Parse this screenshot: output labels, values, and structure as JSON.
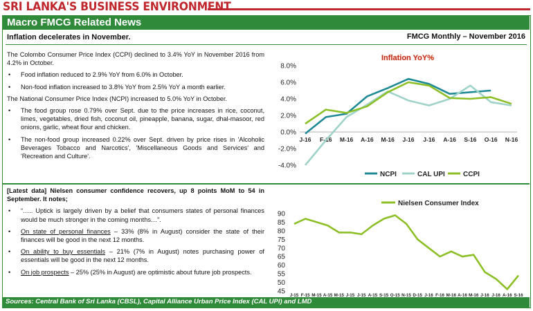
{
  "top_title": "SRI LANKA'S BUSINESS ENVIRONMENT",
  "header": {
    "title": "Macro FMCG Related News"
  },
  "subheader": {
    "left": "Inflation decelerates in November.",
    "right": "FMCG Monthly – November 2016"
  },
  "inflation_text": {
    "p1": "The Colombo Consumer Price Index (CCPI) declined to 3.4% YoY in November 2016 from 4.2% in October.",
    "b1": "Food inflation reduced to 2.9% YoY  from 6.0% in October.",
    "b2": "Non-food inflation increased to 3.8% YoY from 2.5% YoY a month earlier.",
    "p2": "The National Consumer Price Index (NCPI) increased to 5.0% YoY in October.",
    "b3": "The food group rose 0.79% over Sept. due to the price increases in rice, coconut, limes, vegetables, dried fish, coconut oil, pineapple, banana, sugar, dhal-masoor, red onions, garlic, wheat flour and chicken.",
    "b4": "The non-food group increased 0.22% over Sept. driven by price rises in 'Alcoholic Beverages Tobacco and Narcotics', 'Miscellaneous Goods and Services' and 'Recreation and Culture'."
  },
  "confidence_text": {
    "heading": "[Latest data] Nielsen consumer confidence recovers, up 8 points MoM to 54 in September. It notes;",
    "b1": "“….. Uptick is largely driven by a belief that consumers states of personal finances would be much stronger in the coming months…”.",
    "b2_link": "On state of personal finances",
    "b2_rest": " – 33% (8% in August) consider the state of their finances will be good in the next 12 months.",
    "b3_link": "On ability to buy essentials",
    "b3_rest": " – 21% (7% in August) notes purchasing power of essentials will be good in the next 12 months.",
    "b4_link": "On job prospects",
    "b4_rest": " – 25% (25% in August) are optimistic about future job prospects."
  },
  "footer": "Sources: Central Bank of Sri Lanka (CBSL), Capital Alliance Urban Price Index (CAL UPI) and LMD",
  "bullet_char": "•",
  "chart_data": [
    {
      "type": "line",
      "title": "Inflation YoY%",
      "categories": [
        "J-16",
        "F-16",
        "M-16",
        "A-16",
        "M-16",
        "J-16",
        "J-16",
        "A-16",
        "S-16",
        "O-16",
        "N-16"
      ],
      "ylim": [
        -4,
        8
      ],
      "yticks": [
        "-4.0%",
        "-2.0%",
        "0.0%",
        "2.0%",
        "4.0%",
        "6.0%",
        "8.0%"
      ],
      "series": [
        {
          "name": "NCPI",
          "color": "#1e8a96",
          "values": [
            -0.2,
            1.8,
            2.2,
            4.3,
            5.3,
            6.4,
            5.8,
            4.6,
            4.8,
            5.0,
            null
          ]
        },
        {
          "name": "CAL UPI",
          "color": "#9fd3c9",
          "values": [
            -4.0,
            -1.0,
            1.8,
            3.3,
            4.9,
            3.8,
            3.2,
            4.0,
            5.6,
            3.6,
            3.2
          ]
        },
        {
          "name": "CCPI",
          "color": "#8cbf26",
          "values": [
            1.0,
            2.7,
            2.3,
            3.1,
            4.8,
            6.0,
            5.6,
            4.1,
            4.0,
            4.2,
            3.4
          ]
        }
      ]
    },
    {
      "type": "line",
      "title": "",
      "categories": [
        "J-15",
        "F-15",
        "M-15",
        "A-15",
        "M-15",
        "J-15",
        "J-15",
        "A-15",
        "S-15",
        "O-15",
        "N-15",
        "D-15",
        "J-16",
        "F-16",
        "M-16",
        "A-16",
        "M-16",
        "J-16",
        "J-16",
        "A-16",
        "S-16"
      ],
      "ylim": [
        45,
        90
      ],
      "yticks": [
        "45",
        "50",
        "55",
        "60",
        "65",
        "70",
        "75",
        "80",
        "85",
        "90"
      ],
      "series": [
        {
          "name": "Nielsen Consumer Index",
          "color": "#8cbf26",
          "values": [
            84,
            87,
            85,
            83,
            79,
            79,
            78,
            83,
            87,
            89,
            84,
            75,
            70,
            65,
            68,
            65,
            66,
            56,
            52,
            46,
            54
          ]
        }
      ]
    }
  ]
}
